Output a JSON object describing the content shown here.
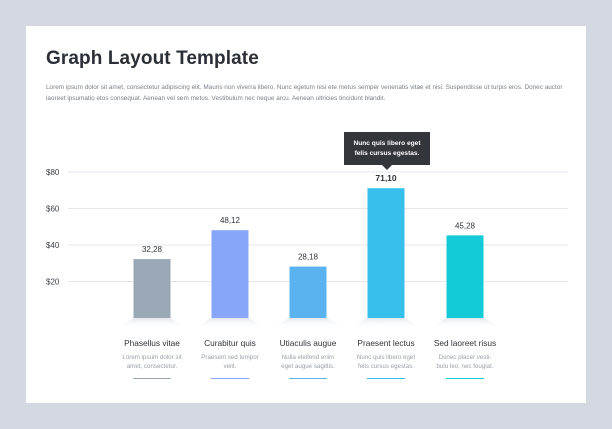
{
  "header": {
    "title": "Graph Layout Template",
    "intro": "Lorem ipsum dolor sit amet, consectetur adipiscing elit. Mauris non viverra libero. Nunc egetum nisi ete metus semper venenatis vitae et nisi. Suspendisse ut turpis eros. Donec auctor laoreet ipsumatio etos consequat. Aenean vel sem metus. Vestibulum nec neque arcu. Aenean ultricies tincidunt blandit."
  },
  "tooltip": {
    "text": "Nunc quis libero eget felis cursus egestas."
  },
  "chart_data": {
    "type": "bar",
    "title": "Graph Layout Template",
    "xlabel": "",
    "ylabel": "",
    "ylim": [
      0,
      80
    ],
    "yticks": [
      20,
      40,
      60,
      80
    ],
    "ytick_labels": [
      "$20",
      "$40",
      "$60",
      "$80"
    ],
    "grid": true,
    "categories": [
      "Phasellus vitae",
      "Curabitur quis",
      "Utiaculis augue",
      "Praesent lectus",
      "Sed laoreet risus"
    ],
    "values": [
      32.28,
      48.12,
      28.18,
      71.1,
      45.28
    ],
    "value_labels": [
      "32,28",
      "48,12",
      "28,18",
      "71,10",
      "45,28"
    ],
    "descriptions": [
      [
        "Lorem ipsum dolor sit",
        "amet, consectetur."
      ],
      [
        "Praesent sed tempor",
        "velit."
      ],
      [
        "Nulla eleifend enim",
        "eget augue sagittis."
      ],
      [
        "Nunc quis libero eget",
        "felis cursus egestas."
      ],
      [
        "Donec placer vesti-",
        "bulu leo, nec feugiat."
      ]
    ],
    "colors": [
      "#9aa8b6",
      "#88a6f9",
      "#5ab3ee",
      "#36bfea",
      "#13cbd6"
    ],
    "highlighted_index": 3
  }
}
